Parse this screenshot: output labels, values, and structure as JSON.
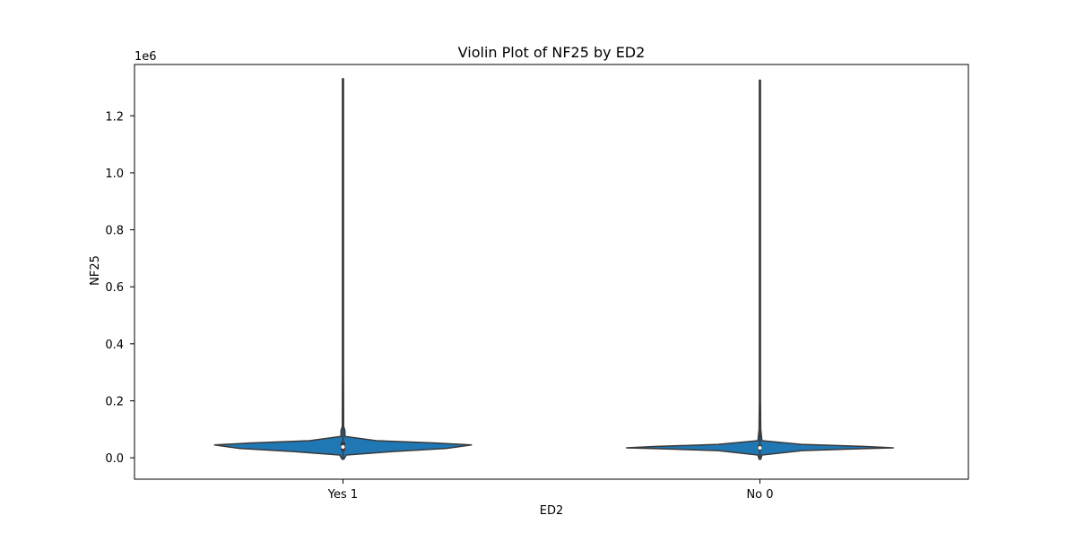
{
  "chart_data": {
    "type": "violin",
    "title": "Violin Plot of NF25 by ED2",
    "xlabel": "ED2",
    "ylabel": "NF25",
    "y_offset_label": "1e6",
    "categories": [
      "Yes 1",
      "No 0"
    ],
    "ylim": [
      -75000,
      1380000
    ],
    "yticks": [
      0,
      200000,
      400000,
      600000,
      800000,
      1000000,
      1200000
    ],
    "ytick_labels": [
      "0.0",
      "0.2",
      "0.4",
      "0.6",
      "0.8",
      "1.0",
      "1.2"
    ],
    "violins": [
      {
        "category": "Yes 1",
        "min": -5000,
        "max": 1330000,
        "q1": 25000,
        "median": 38000,
        "q3": 55000,
        "profile": [
          {
            "y": -5000,
            "w": 0.005
          },
          {
            "y": 10000,
            "w": 0.02
          },
          {
            "y": 22000,
            "w": 0.3
          },
          {
            "y": 33000,
            "w": 0.62
          },
          {
            "y": 45000,
            "w": 0.77
          },
          {
            "y": 52000,
            "w": 0.56
          },
          {
            "y": 60000,
            "w": 0.2
          },
          {
            "y": 75000,
            "w": 0.012
          },
          {
            "y": 95000,
            "w": 0.012
          },
          {
            "y": 110000,
            "w": 0.004
          },
          {
            "y": 300000,
            "w": 0.002
          },
          {
            "y": 1330000,
            "w": 0.001
          }
        ]
      },
      {
        "category": "No 0",
        "min": -5000,
        "max": 1325000,
        "q1": 28000,
        "median": 35000,
        "q3": 45000,
        "profile": [
          {
            "y": -5000,
            "w": 0.005
          },
          {
            "y": 10000,
            "w": 0.012
          },
          {
            "y": 25000,
            "w": 0.25
          },
          {
            "y": 32000,
            "w": 0.6
          },
          {
            "y": 35000,
            "w": 0.8
          },
          {
            "y": 40000,
            "w": 0.62
          },
          {
            "y": 47000,
            "w": 0.25
          },
          {
            "y": 60000,
            "w": 0.012
          },
          {
            "y": 100000,
            "w": 0.005
          },
          {
            "y": 200000,
            "w": 0.002
          },
          {
            "y": 1325000,
            "w": 0.001
          }
        ]
      }
    ],
    "colors": {
      "fill": "#1f77b4",
      "edge": "#3a3a3a",
      "inner": "#3a3a3a"
    },
    "grid": false
  }
}
